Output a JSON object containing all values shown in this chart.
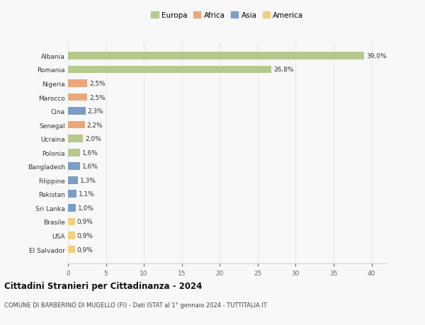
{
  "countries": [
    "Albania",
    "Romania",
    "Nigeria",
    "Marocco",
    "Cina",
    "Senegal",
    "Ucraina",
    "Polonia",
    "Bangladesh",
    "Filippine",
    "Pakistan",
    "Sri Lanka",
    "Brasile",
    "USA",
    "El Salvador"
  ],
  "values": [
    39.0,
    26.8,
    2.5,
    2.5,
    2.3,
    2.2,
    2.0,
    1.6,
    1.6,
    1.3,
    1.1,
    1.0,
    0.9,
    0.9,
    0.9
  ],
  "labels": [
    "39,0%",
    "26,8%",
    "2,5%",
    "2,5%",
    "2,3%",
    "2,2%",
    "2,0%",
    "1,6%",
    "1,6%",
    "1,3%",
    "1,1%",
    "1,0%",
    "0,9%",
    "0,9%",
    "0,9%"
  ],
  "continent": [
    "Europa",
    "Europa",
    "Africa",
    "Africa",
    "Asia",
    "Africa",
    "Europa",
    "Europa",
    "Asia",
    "Asia",
    "Asia",
    "Asia",
    "America",
    "America",
    "America"
  ],
  "colors": {
    "Europa": "#b5c98e",
    "Africa": "#e8a87c",
    "Asia": "#7a9ec5",
    "America": "#f0d080"
  },
  "legend_order": [
    "Europa",
    "Africa",
    "Asia",
    "America"
  ],
  "title": "Cittadini Stranieri per Cittadinanza - 2024",
  "subtitle": "COMUNE DI BARBERINO DI MUGELLO (FI) - Dati ISTAT al 1° gennaio 2024 - TUTTITALIA.IT",
  "xlim": [
    0,
    42
  ],
  "xticks": [
    0,
    5,
    10,
    15,
    20,
    25,
    30,
    35,
    40
  ],
  "background_color": "#f8f8f8",
  "grid_color": "#dddddd"
}
